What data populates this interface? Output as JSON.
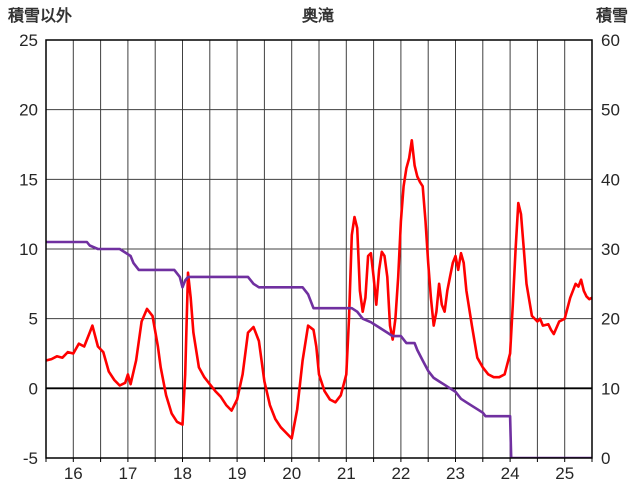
{
  "chart_data": {
    "type": "line",
    "title": "奥滝",
    "left_axis": {
      "label": "積雪以外",
      "min": -5,
      "max": 25,
      "ticks": [
        25,
        20,
        15,
        10,
        5,
        0,
        -5
      ]
    },
    "right_axis": {
      "label": "積雪",
      "min": 0,
      "max": 60,
      "ticks": [
        60,
        50,
        40,
        30,
        20,
        10,
        0
      ]
    },
    "x_axis": {
      "min": 15.5,
      "max": 25.5,
      "gridline_step": 0.5,
      "tick_labels": [
        16,
        17,
        18,
        19,
        20,
        21,
        22,
        23,
        24,
        25
      ]
    },
    "grid": true,
    "legend": "none",
    "series": [
      {
        "name": "積雪以外",
        "axis": "left",
        "color": "#FF0000",
        "points": [
          [
            15.5,
            2.0
          ],
          [
            15.6,
            2.1
          ],
          [
            15.7,
            2.3
          ],
          [
            15.8,
            2.2
          ],
          [
            15.9,
            2.6
          ],
          [
            16.0,
            2.5
          ],
          [
            16.1,
            3.2
          ],
          [
            16.2,
            3.0
          ],
          [
            16.3,
            4.0
          ],
          [
            16.35,
            4.5
          ],
          [
            16.45,
            3.0
          ],
          [
            16.55,
            2.6
          ],
          [
            16.65,
            1.2
          ],
          [
            16.75,
            0.6
          ],
          [
            16.85,
            0.2
          ],
          [
            16.95,
            0.4
          ],
          [
            17.0,
            1.0
          ],
          [
            17.05,
            0.3
          ],
          [
            17.15,
            2.0
          ],
          [
            17.25,
            4.8
          ],
          [
            17.35,
            5.7
          ],
          [
            17.45,
            5.2
          ],
          [
            17.55,
            3.0
          ],
          [
            17.6,
            1.5
          ],
          [
            17.7,
            -0.5
          ],
          [
            17.8,
            -1.8
          ],
          [
            17.9,
            -2.4
          ],
          [
            18.0,
            -2.6
          ],
          [
            18.05,
            1.0
          ],
          [
            18.1,
            8.3
          ],
          [
            18.15,
            6.5
          ],
          [
            18.2,
            4.0
          ],
          [
            18.3,
            1.5
          ],
          [
            18.4,
            0.8
          ],
          [
            18.5,
            0.3
          ],
          [
            18.6,
            -0.2
          ],
          [
            18.7,
            -0.6
          ],
          [
            18.8,
            -1.2
          ],
          [
            18.9,
            -1.6
          ],
          [
            19.0,
            -0.8
          ],
          [
            19.1,
            1.0
          ],
          [
            19.2,
            4.0
          ],
          [
            19.3,
            4.4
          ],
          [
            19.4,
            3.4
          ],
          [
            19.5,
            0.5
          ],
          [
            19.6,
            -1.2
          ],
          [
            19.7,
            -2.2
          ],
          [
            19.8,
            -2.8
          ],
          [
            19.9,
            -3.2
          ],
          [
            20.0,
            -3.6
          ],
          [
            20.1,
            -1.5
          ],
          [
            20.2,
            2.0
          ],
          [
            20.3,
            4.5
          ],
          [
            20.4,
            4.2
          ],
          [
            20.45,
            3.0
          ],
          [
            20.5,
            1.0
          ],
          [
            20.6,
            -0.2
          ],
          [
            20.7,
            -0.8
          ],
          [
            20.8,
            -1.0
          ],
          [
            20.9,
            -0.5
          ],
          [
            21.0,
            1.0
          ],
          [
            21.05,
            5.0
          ],
          [
            21.1,
            11.0
          ],
          [
            21.15,
            12.3
          ],
          [
            21.2,
            11.5
          ],
          [
            21.25,
            7.0
          ],
          [
            21.3,
            5.5
          ],
          [
            21.35,
            6.5
          ],
          [
            21.4,
            9.5
          ],
          [
            21.45,
            9.7
          ],
          [
            21.5,
            8.0
          ],
          [
            21.55,
            6.0
          ],
          [
            21.6,
            8.5
          ],
          [
            21.65,
            9.8
          ],
          [
            21.7,
            9.5
          ],
          [
            21.75,
            8.0
          ],
          [
            21.8,
            4.5
          ],
          [
            21.85,
            3.5
          ],
          [
            21.9,
            5.0
          ],
          [
            21.95,
            8.0
          ],
          [
            22.0,
            12.0
          ],
          [
            22.05,
            14.5
          ],
          [
            22.1,
            15.8
          ],
          [
            22.15,
            16.5
          ],
          [
            22.2,
            17.8
          ],
          [
            22.25,
            16.0
          ],
          [
            22.3,
            15.2
          ],
          [
            22.35,
            14.8
          ],
          [
            22.4,
            14.5
          ],
          [
            22.45,
            12.0
          ],
          [
            22.5,
            9.0
          ],
          [
            22.55,
            6.5
          ],
          [
            22.6,
            4.5
          ],
          [
            22.65,
            5.5
          ],
          [
            22.7,
            7.5
          ],
          [
            22.75,
            6.0
          ],
          [
            22.8,
            5.5
          ],
          [
            22.85,
            7.0
          ],
          [
            22.9,
            8.0
          ],
          [
            22.95,
            9.0
          ],
          [
            23.0,
            9.5
          ],
          [
            23.05,
            8.5
          ],
          [
            23.1,
            9.7
          ],
          [
            23.15,
            9.0
          ],
          [
            23.2,
            7.0
          ],
          [
            23.3,
            4.5
          ],
          [
            23.4,
            2.2
          ],
          [
            23.5,
            1.5
          ],
          [
            23.6,
            1.0
          ],
          [
            23.7,
            0.8
          ],
          [
            23.8,
            0.8
          ],
          [
            23.9,
            1.0
          ],
          [
            24.0,
            2.5
          ],
          [
            24.05,
            6.0
          ],
          [
            24.1,
            10.0
          ],
          [
            24.15,
            13.3
          ],
          [
            24.2,
            12.5
          ],
          [
            24.25,
            10.0
          ],
          [
            24.3,
            7.5
          ],
          [
            24.4,
            5.2
          ],
          [
            24.5,
            4.8
          ],
          [
            24.55,
            5.0
          ],
          [
            24.6,
            4.5
          ],
          [
            24.7,
            4.6
          ],
          [
            24.75,
            4.2
          ],
          [
            24.8,
            3.9
          ],
          [
            24.9,
            4.8
          ],
          [
            25.0,
            5.0
          ],
          [
            25.1,
            6.5
          ],
          [
            25.2,
            7.5
          ],
          [
            25.25,
            7.3
          ],
          [
            25.3,
            7.8
          ],
          [
            25.35,
            7.0
          ],
          [
            25.4,
            6.6
          ],
          [
            25.45,
            6.4
          ],
          [
            25.5,
            6.5
          ]
        ]
      },
      {
        "name": "積雪",
        "axis": "right",
        "color": "#7030A0",
        "points": [
          [
            15.5,
            31
          ],
          [
            16.25,
            31
          ],
          [
            16.3,
            30.5
          ],
          [
            16.45,
            30
          ],
          [
            16.85,
            30
          ],
          [
            16.95,
            29.5
          ],
          [
            17.05,
            29
          ],
          [
            17.1,
            28
          ],
          [
            17.2,
            27
          ],
          [
            17.85,
            27
          ],
          [
            17.95,
            26
          ],
          [
            18.0,
            24.5
          ],
          [
            18.05,
            25.5
          ],
          [
            18.1,
            26
          ],
          [
            19.2,
            26
          ],
          [
            19.3,
            25
          ],
          [
            19.4,
            24.5
          ],
          [
            20.2,
            24.5
          ],
          [
            20.3,
            23.5
          ],
          [
            20.4,
            21.5
          ],
          [
            21.1,
            21.5
          ],
          [
            21.2,
            21
          ],
          [
            21.3,
            20
          ],
          [
            21.45,
            19.5
          ],
          [
            21.55,
            19
          ],
          [
            21.65,
            18.5
          ],
          [
            21.75,
            18
          ],
          [
            21.85,
            17.5
          ],
          [
            22.0,
            17.5
          ],
          [
            22.1,
            16.5
          ],
          [
            22.25,
            16.5
          ],
          [
            22.3,
            15.5
          ],
          [
            22.4,
            14
          ],
          [
            22.5,
            12.5
          ],
          [
            22.6,
            11.5
          ],
          [
            22.7,
            11
          ],
          [
            22.8,
            10.5
          ],
          [
            22.9,
            10
          ],
          [
            23.0,
            9.5
          ],
          [
            23.1,
            8.5
          ],
          [
            23.2,
            8
          ],
          [
            23.3,
            7.5
          ],
          [
            23.4,
            7
          ],
          [
            23.5,
            6.5
          ],
          [
            23.55,
            6
          ],
          [
            24.0,
            6
          ],
          [
            24.02,
            0
          ],
          [
            25.5,
            0
          ]
        ]
      }
    ],
    "styles": {
      "frame_color": "#000000",
      "grid_color": "#404040",
      "zero_line_color": "#000000",
      "background": "#ffffff"
    }
  }
}
